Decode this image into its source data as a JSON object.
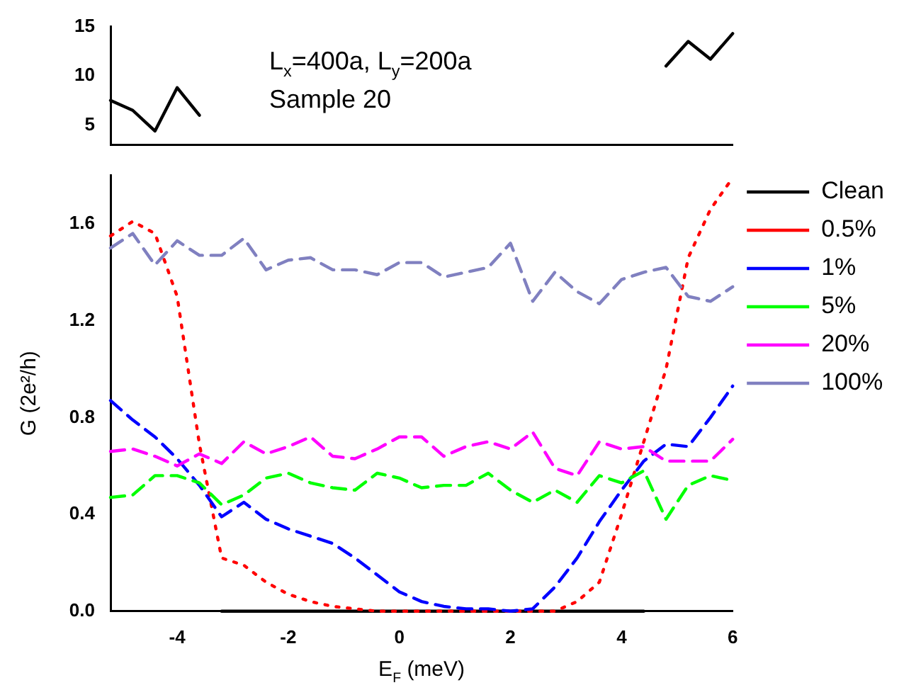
{
  "chart_data": [
    {
      "type": "line",
      "x": [
        -5.2,
        -4.8,
        -4.4,
        -4,
        -3.6,
        -3.2,
        -2.8,
        -2.4,
        -2,
        -1.6,
        -1.2,
        -0.8,
        -0.4,
        0,
        0.4,
        0.8,
        1.2,
        1.6,
        2,
        2.4,
        2.8,
        3.2,
        3.6,
        4,
        4.4,
        4.8,
        5.2,
        5.6,
        6
      ],
      "xlim": [
        -5.2,
        6
      ],
      "ylim": [
        3,
        15
      ],
      "yticks": [
        5,
        10,
        15
      ],
      "tick_labels": "y",
      "grid": false,
      "marker": "none",
      "annotations": [
        "L$_{x}$=400a, L$_{y}$=200a",
        "Sample 20"
      ],
      "series": [
        {
          "color": "#000000",
          "line_style": "solid",
          "values": [
            7.5,
            6.5,
            4.4,
            8.8,
            6.0,
            null,
            null,
            null,
            null,
            null,
            null,
            null,
            null,
            null,
            null,
            null,
            null,
            null,
            null,
            null,
            null,
            null,
            null,
            null,
            null,
            11.0,
            13.5,
            11.7,
            14.3
          ]
        }
      ]
    },
    {
      "type": "line",
      "x": [
        -5.2,
        -4.8,
        -4.4,
        -4,
        -3.6,
        -3.2,
        -2.8,
        -2.4,
        -2,
        -1.6,
        -1.2,
        -0.8,
        -0.4,
        0,
        0.4,
        0.8,
        1.2,
        1.6,
        2,
        2.4,
        2.8,
        3.2,
        3.6,
        4,
        4.4,
        4.8,
        5.2,
        5.6,
        6
      ],
      "xlim": [
        -5.2,
        6
      ],
      "xticks": [
        -4,
        -2,
        0,
        2,
        4,
        6
      ],
      "ylim": [
        0,
        1.8
      ],
      "yticks": [
        {
          "value": 0,
          "label": "0.0"
        },
        0.4,
        0.8,
        1.2,
        1.6
      ],
      "xlabel": "E$_{F}$ (meV)",
      "ylabel": "G (2e²/h)",
      "grid": false,
      "marker": "none",
      "legend": "right",
      "series": [
        {
          "name": "Clean",
          "color": "#000000",
          "line_style": "solid",
          "values": [
            null,
            null,
            null,
            null,
            null,
            0,
            0,
            0,
            0,
            0,
            0,
            0,
            0,
            0,
            0,
            0,
            0,
            0,
            0,
            0,
            0,
            0,
            0,
            0,
            0,
            null,
            null,
            null,
            null
          ]
        },
        {
          "name": "0.5%",
          "color": "#ff0000",
          "line_style": "dotted",
          "values": [
            1.55,
            1.61,
            1.56,
            1.3,
            0.69,
            0.22,
            0.19,
            0.12,
            0.07,
            0.04,
            0.02,
            0.01,
            0,
            0,
            0,
            0,
            0,
            0,
            0,
            0,
            0,
            0.04,
            0.12,
            0.4,
            0.7,
            1.0,
            1.46,
            1.66,
            1.79
          ]
        },
        {
          "name": "1%",
          "color": "#0000ff",
          "line_style": "dashed",
          "values": [
            0.87,
            0.79,
            0.72,
            0.63,
            0.52,
            0.39,
            0.45,
            0.38,
            0.34,
            0.31,
            0.28,
            0.22,
            0.15,
            0.08,
            0.04,
            0.02,
            0.01,
            0.01,
            0.0,
            0.01,
            0.1,
            0.22,
            0.37,
            0.5,
            0.62,
            0.69,
            0.68,
            0.8,
            0.93
          ]
        },
        {
          "name": "5%",
          "color": "#00ff00",
          "line_style": "dashed",
          "values": [
            0.47,
            0.48,
            0.56,
            0.56,
            0.53,
            0.44,
            0.48,
            0.55,
            0.57,
            0.53,
            0.51,
            0.5,
            0.57,
            0.55,
            0.51,
            0.52,
            0.52,
            0.57,
            0.5,
            0.45,
            0.5,
            0.45,
            0.56,
            0.53,
            0.58,
            0.38,
            0.52,
            0.56,
            0.54
          ]
        },
        {
          "name": "20%",
          "color": "#ff00ff",
          "line_style": "dashed",
          "values": [
            0.66,
            0.67,
            0.64,
            0.6,
            0.65,
            0.61,
            0.7,
            0.65,
            0.68,
            0.72,
            0.64,
            0.63,
            0.67,
            0.72,
            0.72,
            0.64,
            0.68,
            0.7,
            0.67,
            0.74,
            0.59,
            0.56,
            0.7,
            0.67,
            0.68,
            0.62,
            0.62,
            0.62,
            0.71
          ]
        },
        {
          "name": "100%",
          "color": "#8080c0",
          "line_style": "dashed",
          "values": [
            1.5,
            1.56,
            1.43,
            1.53,
            1.47,
            1.47,
            1.54,
            1.41,
            1.45,
            1.46,
            1.41,
            1.41,
            1.39,
            1.44,
            1.44,
            1.38,
            1.4,
            1.42,
            1.52,
            1.28,
            1.4,
            1.32,
            1.27,
            1.37,
            1.4,
            1.42,
            1.3,
            1.28,
            1.34
          ]
        }
      ]
    }
  ]
}
